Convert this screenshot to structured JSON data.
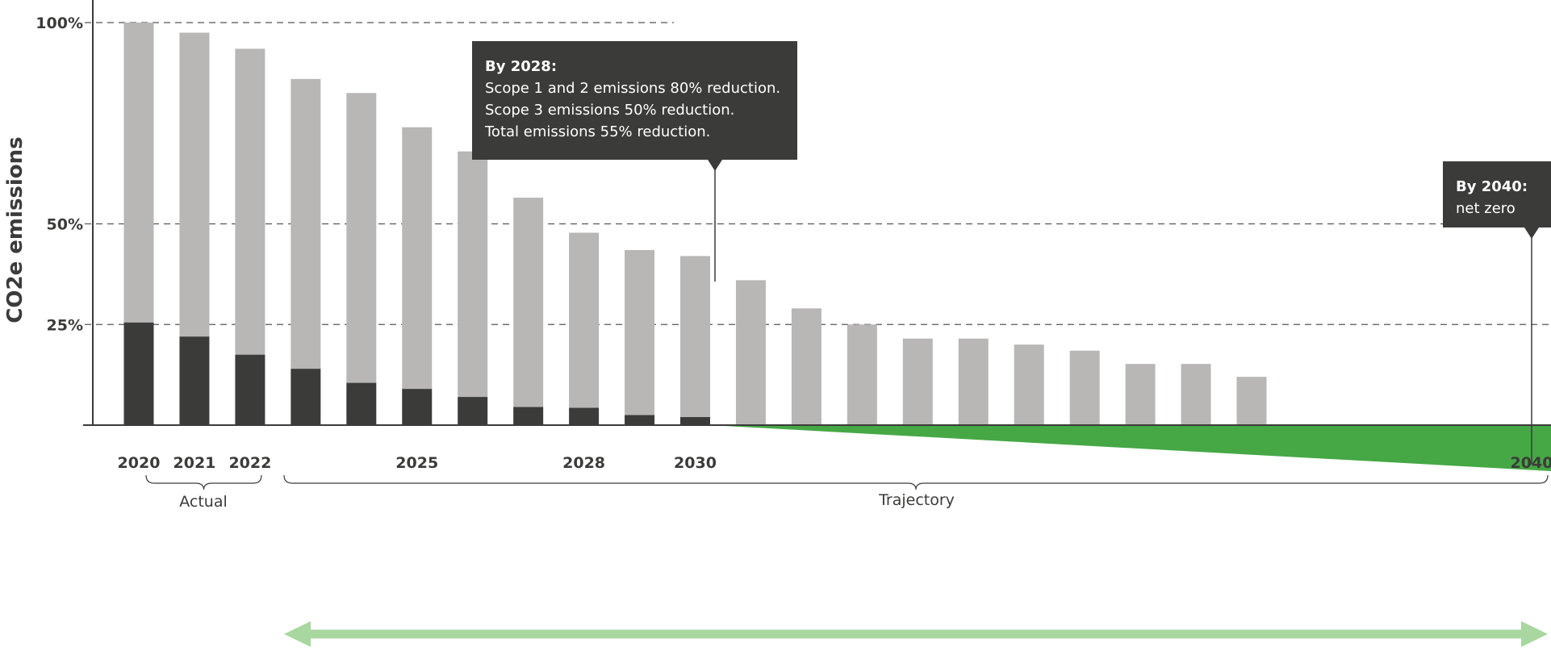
{
  "chart_data": {
    "type": "bar",
    "ylabel": "CO2e emissions",
    "yticks": [
      "25%",
      "50%",
      "100%"
    ],
    "ytick_values": [
      25,
      50,
      100
    ],
    "ylim": [
      0,
      100
    ],
    "grid": "dashed horizontal at 25%, 50%, 100%",
    "x": [
      2020,
      2021,
      2022,
      2023,
      2024,
      2025,
      2026,
      2027,
      2028,
      2029,
      2030,
      2031,
      2032,
      2033,
      2034,
      2035,
      2036,
      2037,
      2038,
      2039,
      2040
    ],
    "xticks_labeled": [
      "2020",
      "2021",
      "2022",
      "2025",
      "2028",
      "2030",
      "2040"
    ],
    "series": [
      {
        "key": "dark",
        "color": "#3b3b3a",
        "values": [
          25.5,
          22,
          17.5,
          14,
          10.5,
          9,
          7,
          4.5,
          4.3,
          2.5,
          2,
          0,
          0,
          0,
          0,
          0,
          0,
          0,
          0,
          0,
          0
        ]
      },
      {
        "key": "light",
        "color": "#b8b7b6",
        "values": [
          74.5,
          75.5,
          76,
          72,
          72,
          65,
          61,
          52,
          43.5,
          41,
          40,
          36,
          29,
          25,
          21.5,
          21.5,
          20,
          18.5,
          15.2,
          15.2,
          12
        ]
      }
    ],
    "groups": [
      {
        "label": "Actual"
      },
      {
        "label": "Trajectory"
      }
    ],
    "annotations": [
      {
        "at": 2028,
        "title": "By 2028:",
        "lines": [
          "Scope 1 and 2 emissions 80% reduction.",
          "Scope 3 emissions 50% reduction.",
          "Total emissions 55% reduction."
        ]
      },
      {
        "at": 2040,
        "title": "By 2040:",
        "lines": [
          "net zero"
        ]
      }
    ],
    "colors": {
      "dark": "#3b3b3a",
      "light": "#b8b7b6",
      "green": "#45a845",
      "arrow": "#a8d7a0",
      "callout": "#3b3b3a"
    }
  }
}
